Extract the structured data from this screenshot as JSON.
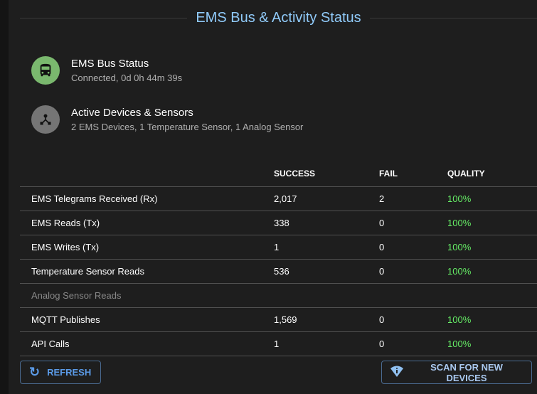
{
  "title": "EMS Bus & Activity Status",
  "status": [
    {
      "title": "EMS Bus Status",
      "subtitle": "Connected, 0d 0h 44m 39s",
      "icon": "bus-icon",
      "color": "#7ab86e"
    },
    {
      "title": "Active Devices & Sensors",
      "subtitle": "2 EMS Devices, 1 Temperature Sensor, 1 Analog Sensor",
      "icon": "device-hub-icon",
      "color": "#757575"
    }
  ],
  "table": {
    "headers": [
      "",
      "SUCCESS",
      "FAIL",
      "QUALITY"
    ],
    "rows": [
      [
        "EMS Telegrams Received (Rx)",
        "2,017",
        "2",
        "100%"
      ],
      [
        "EMS Reads (Tx)",
        "338",
        "0",
        "100%"
      ],
      [
        "EMS Writes (Tx)",
        "1",
        "0",
        "100%"
      ],
      [
        "Temperature Sensor Reads",
        "536",
        "0",
        "100%"
      ],
      [
        "Analog Sensor Reads",
        "",
        "",
        ""
      ],
      [
        "MQTT Publishes",
        "1,569",
        "0",
        "100%"
      ],
      [
        "API Calls",
        "1",
        "0",
        "100%"
      ]
    ]
  },
  "buttons": {
    "refresh": "REFRESH",
    "scan": "SCAN FOR NEW DEVICES"
  }
}
